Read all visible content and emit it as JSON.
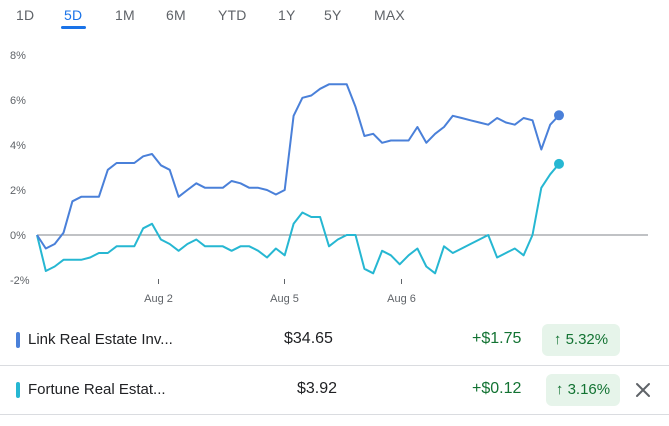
{
  "tabs": [
    {
      "label": "1D",
      "active": false
    },
    {
      "label": "5D",
      "active": true
    },
    {
      "label": "1M",
      "active": false
    },
    {
      "label": "6M",
      "active": false
    },
    {
      "label": "YTD",
      "active": false
    },
    {
      "label": "1Y",
      "active": false
    },
    {
      "label": "5Y",
      "active": false
    },
    {
      "label": "MAX",
      "active": false
    }
  ],
  "chart_data": {
    "type": "line",
    "y_ticks": [
      "8%",
      "6%",
      "4%",
      "2%",
      "0%",
      "-2%"
    ],
    "y_tick_values": [
      8,
      6,
      4,
      2,
      0,
      -2
    ],
    "ylim": [
      -2,
      8
    ],
    "x_ticks": [
      "Aug 2",
      "Aug 5",
      "Aug 6"
    ],
    "x_tick_positions": [
      13.5,
      27.5,
      40.5
    ],
    "xlim": [
      0,
      58
    ],
    "grid": false,
    "zero_line": true,
    "series": [
      {
        "color": "#4a80d9",
        "values": [
          0.0,
          -0.6,
          -0.4,
          0.1,
          1.5,
          1.7,
          1.7,
          1.7,
          2.9,
          3.2,
          3.2,
          3.2,
          3.5,
          3.6,
          3.1,
          2.9,
          1.7,
          2.0,
          2.3,
          2.1,
          2.1,
          2.1,
          2.4,
          2.3,
          2.1,
          2.1,
          2.0,
          1.8,
          2.0,
          5.3,
          6.1,
          6.2,
          6.5,
          6.7,
          6.7,
          6.7,
          5.7,
          4.4,
          4.5,
          4.1,
          4.2,
          4.2,
          4.2,
          4.8,
          4.1,
          4.5,
          4.8,
          5.3,
          5.2,
          5.1,
          5.0,
          4.9,
          5.2,
          5.0,
          4.9,
          5.2,
          5.1,
          3.8,
          4.9,
          5.32
        ]
      },
      {
        "color": "#26b7d2",
        "values": [
          0.0,
          -1.6,
          -1.4,
          -1.1,
          -1.1,
          -1.1,
          -1.0,
          -0.8,
          -0.8,
          -0.5,
          -0.5,
          -0.5,
          0.3,
          0.5,
          -0.2,
          -0.4,
          -0.7,
          -0.4,
          -0.2,
          -0.5,
          -0.5,
          -0.5,
          -0.7,
          -0.5,
          -0.5,
          -0.7,
          -1.0,
          -0.6,
          -0.9,
          0.5,
          1.0,
          0.8,
          0.8,
          -0.5,
          -0.2,
          0.0,
          0.0,
          -1.5,
          -1.7,
          -0.7,
          -0.9,
          -1.3,
          -0.9,
          -0.6,
          -1.4,
          -1.7,
          -0.5,
          -0.8,
          -0.6,
          -0.4,
          -0.2,
          0.0,
          -1.0,
          -0.8,
          -0.6,
          -0.9,
          0.0,
          2.1,
          2.7,
          3.16
        ]
      }
    ]
  },
  "stocks": [
    {
      "name": "Link Real Estate Inv...",
      "price": "$34.65",
      "change": "+$1.75",
      "percent": "5.32%",
      "color": "#4a80d9"
    },
    {
      "name": "Fortune Real Estat...",
      "price": "$3.92",
      "change": "+$0.12",
      "percent": "3.16%",
      "color": "#26b7d2"
    }
  ]
}
